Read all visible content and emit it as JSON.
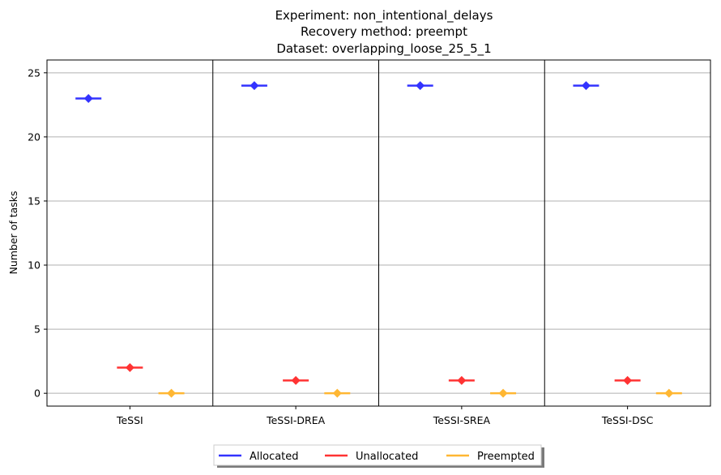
{
  "chart_data": {
    "type": "scatter",
    "title_lines": [
      "Experiment: non_intentional_delays",
      "Recovery method: preempt",
      "Dataset: overlapping_loose_25_5_1"
    ],
    "xlabel": "",
    "ylabel": "Number of tasks",
    "ylim": [
      -1,
      26
    ],
    "yticks": [
      0,
      5,
      10,
      15,
      20,
      25
    ],
    "grid": "y",
    "categories": [
      "TeSSI",
      "TeSSI-DREA",
      "TeSSI-SREA",
      "TeSSI-DSC"
    ],
    "series": [
      {
        "name": "Allocated",
        "color": "#3333ff",
        "values": [
          23,
          24,
          24,
          24
        ]
      },
      {
        "name": "Unallocated",
        "color": "#ff3333",
        "values": [
          2,
          1,
          1,
          1
        ]
      },
      {
        "name": "Preempted",
        "color": "#ffb733",
        "values": [
          0,
          0,
          0,
          0
        ]
      }
    ],
    "legend_position": "bottom-center"
  }
}
